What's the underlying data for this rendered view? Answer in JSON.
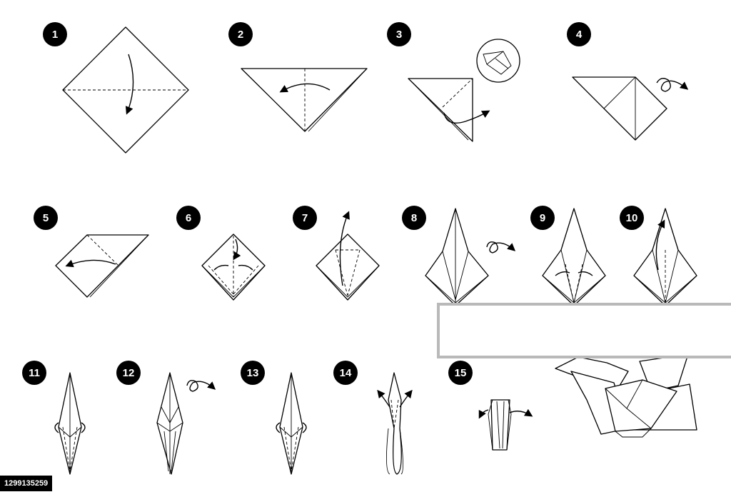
{
  "steps": [
    {
      "label": "1"
    },
    {
      "label": "2"
    },
    {
      "label": "3"
    },
    {
      "label": "4"
    },
    {
      "label": "5"
    },
    {
      "label": "6"
    },
    {
      "label": "7"
    },
    {
      "label": "8"
    },
    {
      "label": "9"
    },
    {
      "label": "10"
    },
    {
      "label": "11"
    },
    {
      "label": "12"
    },
    {
      "label": "13"
    },
    {
      "label": "14"
    },
    {
      "label": "15"
    }
  ],
  "image_id": "1299135259",
  "colors": {
    "ink": "#000000",
    "paper": "#ffffff",
    "banner_border": "#b9b9b9"
  }
}
